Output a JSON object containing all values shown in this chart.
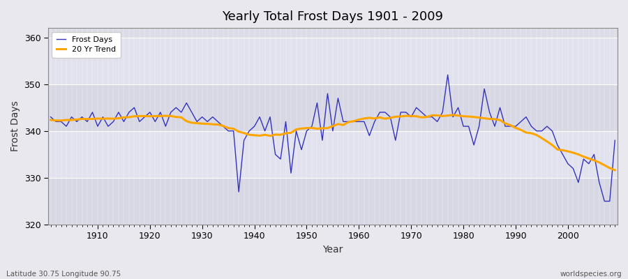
{
  "title": "Yearly Total Frost Days 1901 - 2009",
  "xlabel": "Year",
  "ylabel": "Frost Days",
  "subtitle_left": "Latitude 30.75 Longitude 90.75",
  "subtitle_right": "worldspecies.org",
  "ylim": [
    320,
    362
  ],
  "yticks": [
    320,
    330,
    340,
    350,
    360
  ],
  "line_color": "#3333bb",
  "trend_color": "#FFA500",
  "bg_outer": "#e8e8ee",
  "bg_inner": "#dcdce6",
  "bg_band_light": "#e4e4ec",
  "grid_color": "#c8c8d8",
  "legend_labels": [
    "Frost Days",
    "20 Yr Trend"
  ],
  "years": [
    1901,
    1902,
    1903,
    1904,
    1905,
    1906,
    1907,
    1908,
    1909,
    1910,
    1911,
    1912,
    1913,
    1914,
    1915,
    1916,
    1917,
    1918,
    1919,
    1920,
    1921,
    1922,
    1923,
    1924,
    1925,
    1926,
    1927,
    1928,
    1929,
    1930,
    1931,
    1932,
    1933,
    1934,
    1935,
    1936,
    1937,
    1938,
    1939,
    1940,
    1941,
    1942,
    1943,
    1944,
    1945,
    1946,
    1947,
    1948,
    1949,
    1950,
    1951,
    1952,
    1953,
    1954,
    1955,
    1956,
    1957,
    1958,
    1959,
    1960,
    1961,
    1962,
    1963,
    1964,
    1965,
    1966,
    1967,
    1968,
    1969,
    1970,
    1971,
    1972,
    1973,
    1974,
    1975,
    1976,
    1977,
    1978,
    1979,
    1980,
    1981,
    1982,
    1983,
    1984,
    1985,
    1986,
    1987,
    1988,
    1989,
    1990,
    1991,
    1992,
    1993,
    1994,
    1995,
    1996,
    1997,
    1998,
    1999,
    2000,
    2001,
    2002,
    2003,
    2004,
    2005,
    2006,
    2007,
    2008,
    2009
  ],
  "frost_days": [
    343,
    342,
    342,
    341,
    343,
    342,
    343,
    342,
    344,
    341,
    343,
    341,
    342,
    344,
    342,
    344,
    345,
    342,
    343,
    344,
    342,
    344,
    341,
    344,
    345,
    344,
    346,
    344,
    342,
    343,
    342,
    343,
    342,
    341,
    340,
    340,
    327,
    338,
    340,
    341,
    343,
    340,
    343,
    335,
    334,
    342,
    331,
    340,
    336,
    340,
    341,
    346,
    338,
    348,
    340,
    347,
    342,
    342,
    342,
    342,
    342,
    339,
    342,
    344,
    344,
    343,
    338,
    344,
    344,
    343,
    345,
    344,
    343,
    343,
    342,
    344,
    352,
    343,
    345,
    341,
    341,
    337,
    341,
    349,
    344,
    341,
    345,
    341,
    341,
    341,
    342,
    343,
    341,
    340,
    340,
    341,
    340,
    337,
    335,
    333,
    332,
    329,
    334,
    333,
    335,
    329,
    325,
    325,
    338
  ],
  "xlim_left": 1901,
  "xlim_right": 2009
}
